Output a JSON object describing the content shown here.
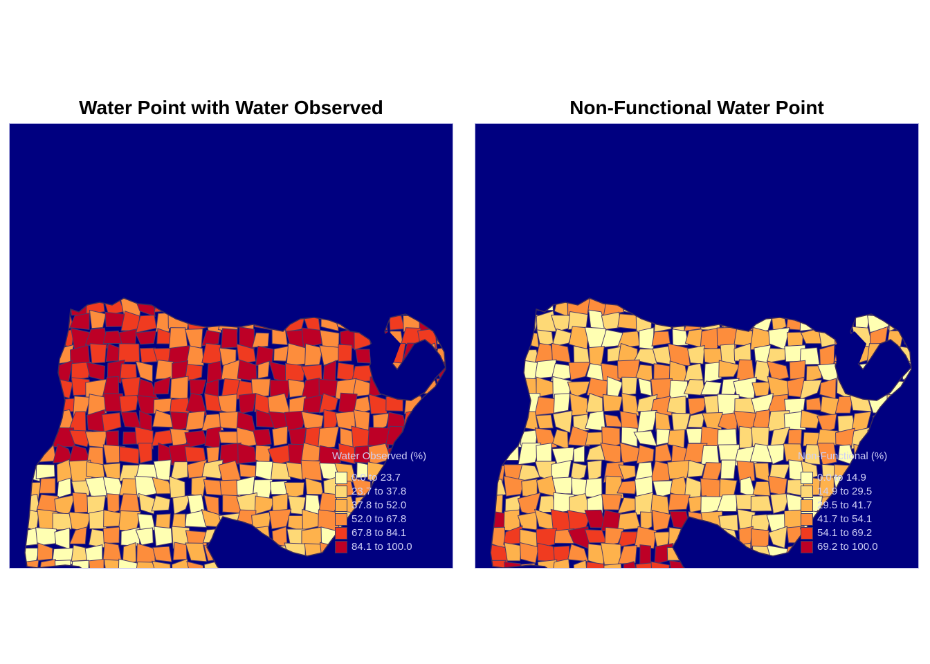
{
  "panels": [
    {
      "title": "Water Point with Water Observed",
      "legend_title": "Water Observed (%)",
      "classes": [
        {
          "label": "0.0 to 23.7",
          "color": "#ffffb2"
        },
        {
          "label": "23.7 to 37.8",
          "color": "#fed976"
        },
        {
          "label": "37.8 to 52.0",
          "color": "#feb24c"
        },
        {
          "label": "52.0 to 67.8",
          "color": "#fd8d3c"
        },
        {
          "label": "67.8 to 84.1",
          "color": "#f03b20"
        },
        {
          "label": "84.1 to 100.0",
          "color": "#bd0026"
        }
      ],
      "background": "#000080"
    },
    {
      "title": "Non-Functional Water Point",
      "legend_title": "Non-Functional (%)",
      "classes": [
        {
          "label": "0.0 to 14.9",
          "color": "#ffffb2"
        },
        {
          "label": "14.9 to 29.5",
          "color": "#fed976"
        },
        {
          "label": "29.5 to 41.7",
          "color": "#feb24c"
        },
        {
          "label": "41.7 to 54.1",
          "color": "#fd8d3c"
        },
        {
          "label": "54.1 to 69.2",
          "color": "#f03b20"
        },
        {
          "label": "69.2 to 100.0",
          "color": "#bd0026"
        }
      ],
      "background": "#000080"
    }
  ]
}
